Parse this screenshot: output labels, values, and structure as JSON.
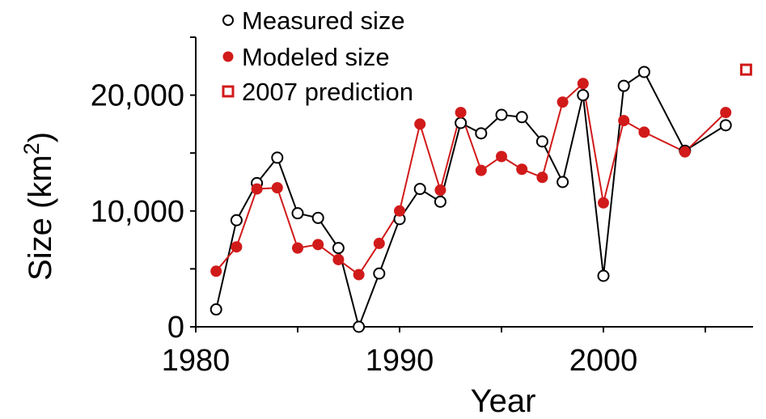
{
  "chart_data": {
    "type": "line",
    "xlabel": "Year",
    "ylabel": "Size (km",
    "ylabel_sup": "2",
    "ylabel_close": ")",
    "xlim": [
      1980,
      2007.5
    ],
    "ylim": [
      0,
      25000
    ],
    "xticks": [
      1980,
      1985,
      1990,
      1995,
      2000,
      2005
    ],
    "xtick_labels": [
      "1980",
      "",
      "1990",
      "",
      "2000",
      ""
    ],
    "yticks": [
      0,
      5000,
      10000,
      15000,
      20000,
      25000
    ],
    "ytick_labels": [
      "0",
      "",
      "10,000",
      "",
      "20,000",
      ""
    ],
    "legend_position": "top-left",
    "series": [
      {
        "name": "Measured size",
        "color": "#000000",
        "marker": "open-circle",
        "x": [
          1981,
          1982,
          1983,
          1984,
          1985,
          1986,
          1987,
          1988,
          1989,
          1990,
          1991,
          1992,
          1993,
          1994,
          1995,
          1996,
          1997,
          1998,
          1999,
          2000,
          2001,
          2002,
          2004,
          2006
        ],
        "y": [
          1500,
          9200,
          12400,
          14600,
          9800,
          9400,
          6800,
          0,
          4600,
          9300,
          11900,
          10800,
          17600,
          16700,
          18300,
          18100,
          16000,
          12500,
          20000,
          4400,
          20800,
          22000,
          15200,
          17400
        ]
      },
      {
        "name": "Modeled size",
        "color": "#d11a1a",
        "marker": "filled-circle",
        "x": [
          1981,
          1982,
          1983,
          1984,
          1985,
          1986,
          1987,
          1988,
          1989,
          1990,
          1991,
          1992,
          1993,
          1994,
          1995,
          1996,
          1997,
          1998,
          1999,
          2000,
          2001,
          2002,
          2004,
          2006
        ],
        "y": [
          4800,
          6900,
          11900,
          12000,
          6800,
          7100,
          5800,
          4500,
          7200,
          10000,
          17500,
          11800,
          18500,
          13500,
          14700,
          13600,
          12900,
          19400,
          21000,
          10700,
          17800,
          16800,
          15100,
          18500
        ]
      },
      {
        "name": "2007 prediction",
        "color": "#d11a1a",
        "marker": "open-square",
        "x": [
          2007
        ],
        "y": [
          22200
        ]
      }
    ]
  }
}
